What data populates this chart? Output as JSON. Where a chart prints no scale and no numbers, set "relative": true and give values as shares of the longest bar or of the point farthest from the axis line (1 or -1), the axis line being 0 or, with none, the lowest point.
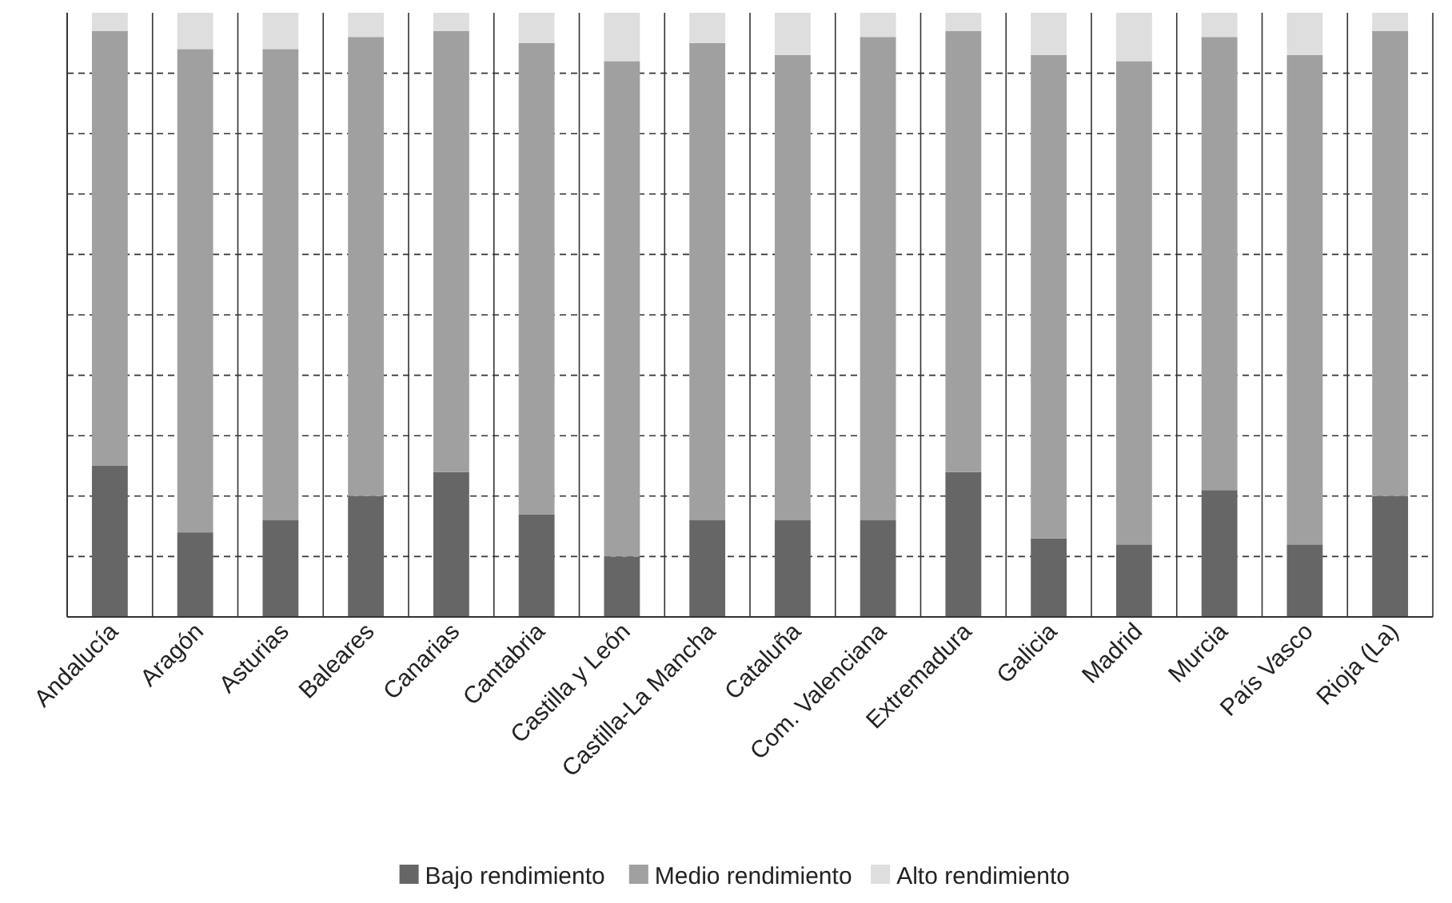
{
  "chart_data": {
    "type": "bar",
    "stacked": true,
    "relative": true,
    "grid": true,
    "legend": "bottom",
    "categories": [
      "Andalucía",
      "Aragón",
      "Asturias",
      "Baleares",
      "Canarias",
      "Cantabria",
      "Castilla y León",
      "Castilla-La Mancha",
      "Cataluña",
      "Com. Valenciana",
      "Extremadura",
      "Galicia",
      "Madrid",
      "Murcia",
      "País Vasco",
      "Rioja (La)"
    ],
    "series": [
      {
        "name": "Bajo rendimiento",
        "color": "#666666",
        "values": [
          0.25,
          0.14,
          0.16,
          0.2,
          0.24,
          0.17,
          0.1,
          0.16,
          0.16,
          0.16,
          0.24,
          0.13,
          0.12,
          0.21,
          0.12,
          0.2
        ]
      },
      {
        "name": "Medio rendimiento",
        "color": "#a0a0a0",
        "values": [
          0.72,
          0.8,
          0.78,
          0.76,
          0.73,
          0.78,
          0.82,
          0.79,
          0.77,
          0.8,
          0.73,
          0.8,
          0.8,
          0.75,
          0.81,
          0.77
        ]
      },
      {
        "name": "Alto rendimiento",
        "color": "#dedede",
        "values": [
          0.03,
          0.06,
          0.06,
          0.04,
          0.03,
          0.05,
          0.08,
          0.05,
          0.07,
          0.04,
          0.03,
          0.07,
          0.08,
          0.04,
          0.07,
          0.03
        ]
      }
    ]
  }
}
